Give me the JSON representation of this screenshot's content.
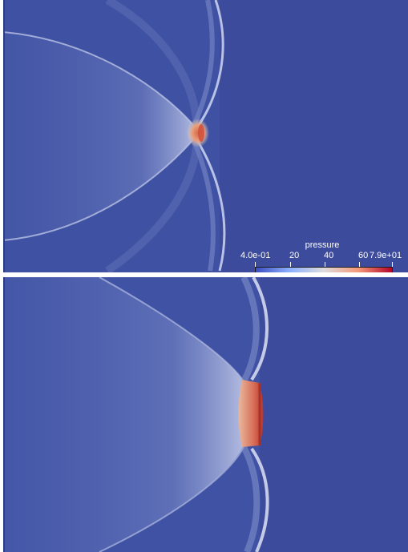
{
  "colorbar": {
    "title": "pressure",
    "labels": [
      "4.0e-01",
      "20",
      "40",
      "60",
      "7.9e+01"
    ],
    "min": 0.4,
    "max": 79,
    "colors": {
      "low": "#3b4cc0",
      "mid": "#dddddd",
      "high": "#b40426"
    }
  },
  "panels": [
    {
      "name": "top-field",
      "background": "#3b4b9b"
    },
    {
      "name": "bottom-field",
      "background": "#3b4b9b"
    }
  ]
}
